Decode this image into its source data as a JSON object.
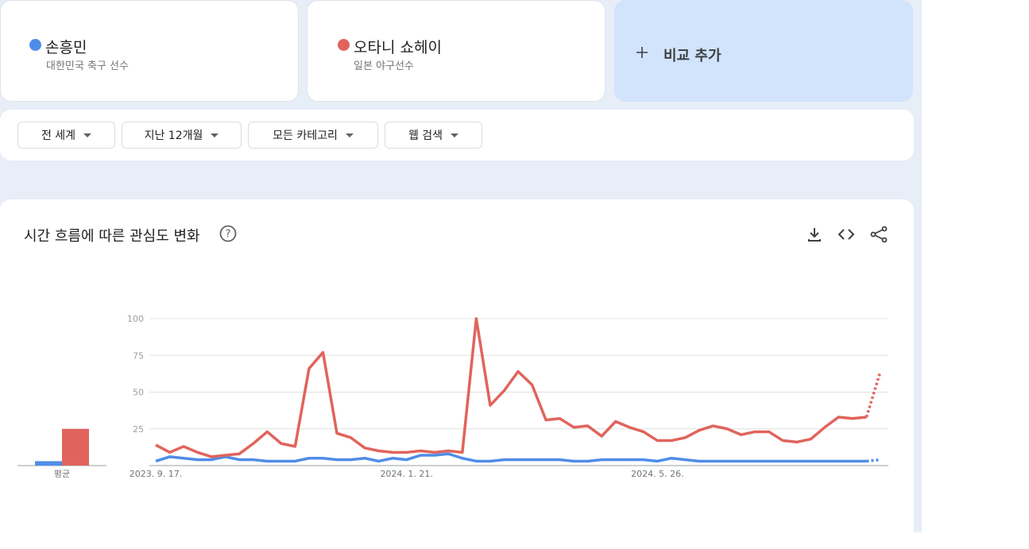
{
  "terms": [
    {
      "name": "손흥민",
      "description": "대한민국 축구 선수",
      "color": "#4f8ce8"
    },
    {
      "name": "오타니 쇼헤이",
      "description": "일본 야구선수",
      "color": "#e0645c"
    }
  ],
  "add_compare": "비교 추가",
  "filters": [
    "전 세계",
    "지난 12개월",
    "모든 카테고리",
    "웹 검색"
  ],
  "panel_title": "시간 흐름에 따른 관심도 변화",
  "chart_data": [
    {
      "type": "bar",
      "categories": [
        "평균"
      ],
      "ylim": [
        0,
        100
      ],
      "series": [
        {
          "name": "손흥민",
          "color": "#4f8ce8",
          "values": [
            3
          ]
        },
        {
          "name": "오타니 쇼헤이",
          "color": "#e0645c",
          "values": [
            25
          ]
        }
      ]
    },
    {
      "type": "line",
      "ylim": [
        0,
        100
      ],
      "yticks": [
        25,
        50,
        75,
        100
      ],
      "grid": true,
      "last_point_partial": true,
      "categories": [
        "2023. 9. 17.",
        null,
        null,
        null,
        null,
        null,
        null,
        null,
        null,
        null,
        null,
        null,
        null,
        null,
        null,
        null,
        null,
        null,
        "2024. 1. 21.",
        null,
        null,
        null,
        null,
        null,
        null,
        null,
        null,
        null,
        null,
        null,
        null,
        null,
        null,
        null,
        null,
        null,
        "2024. 5. 26.",
        null,
        null,
        null,
        null,
        null,
        null,
        null,
        null,
        null,
        null,
        null,
        null,
        null,
        null,
        null,
        null
      ],
      "series": [
        {
          "name": "손흥민",
          "color": "#4f8ce8",
          "values": [
            3,
            6,
            5,
            4,
            4,
            6,
            4,
            4,
            3,
            3,
            3,
            5,
            5,
            4,
            4,
            5,
            3,
            5,
            4,
            7,
            7,
            8,
            5,
            3,
            3,
            4,
            4,
            4,
            4,
            4,
            3,
            3,
            4,
            4,
            4,
            4,
            3,
            5,
            4,
            3,
            3,
            3,
            3,
            3,
            3,
            3,
            3,
            3,
            3,
            3,
            3,
            3,
            4
          ]
        },
        {
          "name": "오타니 쇼헤이",
          "color": "#e0645c",
          "values": [
            14,
            9,
            13,
            9,
            6,
            7,
            8,
            15,
            23,
            15,
            13,
            66,
            77,
            22,
            19,
            12,
            10,
            9,
            9,
            10,
            9,
            10,
            9,
            100,
            41,
            51,
            64,
            55,
            31,
            32,
            26,
            27,
            20,
            30,
            26,
            23,
            17,
            17,
            19,
            24,
            27,
            25,
            21,
            23,
            23,
            17,
            16,
            18,
            26,
            33,
            32,
            33,
            64
          ]
        }
      ]
    }
  ]
}
